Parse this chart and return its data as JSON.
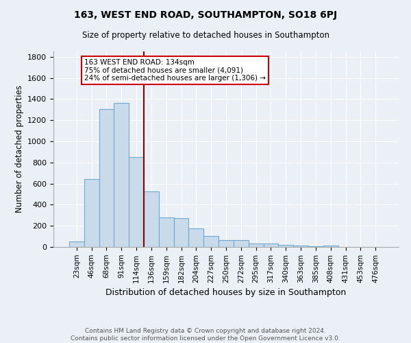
{
  "title": "163, WEST END ROAD, SOUTHAMPTON, SO18 6PJ",
  "subtitle": "Size of property relative to detached houses in Southampton",
  "xlabel": "Distribution of detached houses by size in Southampton",
  "ylabel": "Number of detached properties",
  "categories": [
    "23sqm",
    "46sqm",
    "68sqm",
    "91sqm",
    "114sqm",
    "136sqm",
    "159sqm",
    "182sqm",
    "204sqm",
    "227sqm",
    "250sqm",
    "272sqm",
    "295sqm",
    "317sqm",
    "340sqm",
    "363sqm",
    "385sqm",
    "408sqm",
    "431sqm",
    "453sqm",
    "476sqm"
  ],
  "values": [
    55,
    645,
    1305,
    1360,
    850,
    525,
    280,
    275,
    175,
    105,
    65,
    65,
    35,
    35,
    20,
    10,
    5,
    15,
    0,
    0,
    0
  ],
  "bar_color": "#c9daea",
  "bar_edge_color": "#6fa8d0",
  "vline_color": "#8b0000",
  "vline_x_index": 5,
  "annotation_text": "163 WEST END ROAD: 134sqm\n75% of detached houses are smaller (4,091)\n24% of semi-detached houses are larger (1,306) →",
  "annotation_box_color": "#ffffff",
  "annotation_box_edge": "#cc0000",
  "ylim": [
    0,
    1850
  ],
  "yticks": [
    0,
    200,
    400,
    600,
    800,
    1000,
    1200,
    1400,
    1600,
    1800
  ],
  "bg_color": "#eaf0f6",
  "grid_color": "#ffffff",
  "footer": "Contains HM Land Registry data © Crown copyright and database right 2024.\nContains public sector information licensed under the Open Government Licence v3.0."
}
